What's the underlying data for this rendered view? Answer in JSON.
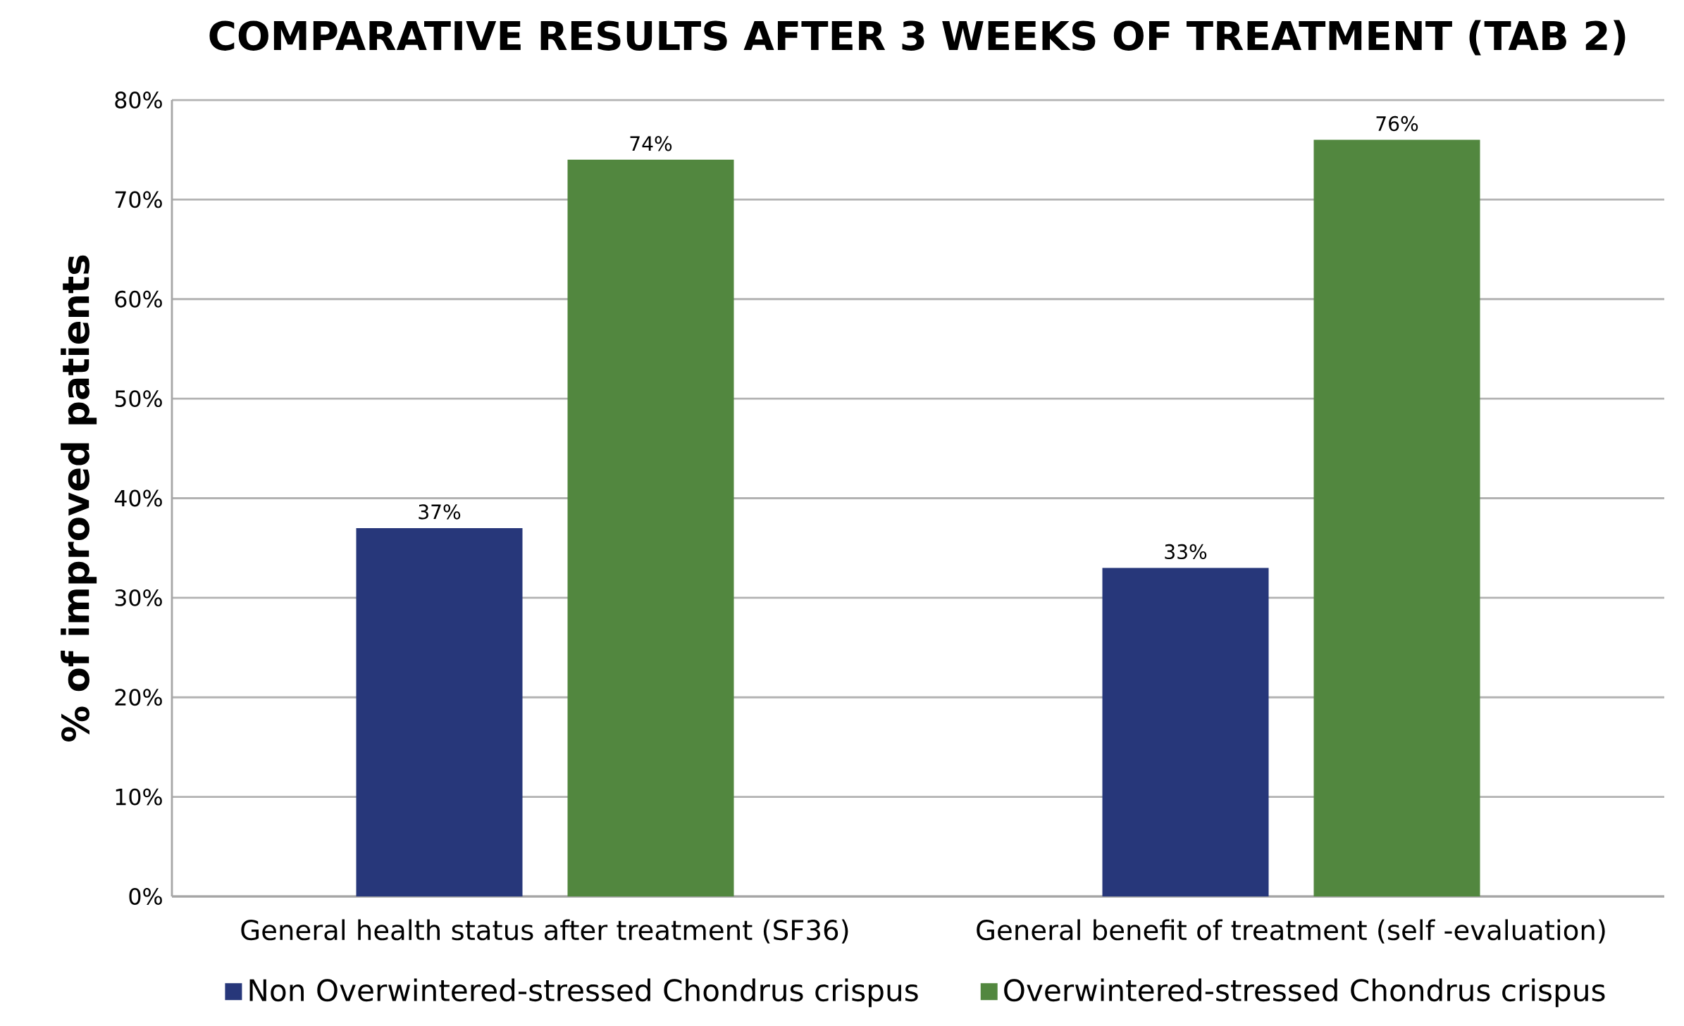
{
  "chart_data": {
    "type": "bar",
    "title": "COMPARATIVE RESULTS AFTER 3 WEEKS OF TREATMENT (TAB 2)",
    "ylabel": "% of improved patients",
    "categories": [
      "General health status after treatment (SF36)",
      "General benefit of treatment (self -evaluation)"
    ],
    "series": [
      {
        "name": "Non Overwintered-stressed Chondrus crispus",
        "color": "#27377a",
        "values": [
          37,
          33
        ],
        "value_labels": [
          "37%",
          "33%"
        ]
      },
      {
        "name": "Overwintered-stressed Chondrus crispus",
        "color": "#52873f",
        "values": [
          74,
          76
        ],
        "value_labels": [
          "74%",
          "76%"
        ]
      }
    ],
    "ylim": [
      0,
      80
    ],
    "yticks": [
      {
        "value": 0,
        "label": "0%"
      },
      {
        "value": 10,
        "label": "10%"
      },
      {
        "value": 20,
        "label": "20%"
      },
      {
        "value": 30,
        "label": "30%"
      },
      {
        "value": 40,
        "label": "40%"
      },
      {
        "value": 50,
        "label": "50%"
      },
      {
        "value": 60,
        "label": "60%"
      },
      {
        "value": 70,
        "label": "70%"
      },
      {
        "value": 80,
        "label": "80%"
      }
    ],
    "grid": "y",
    "legend": "bottom"
  }
}
